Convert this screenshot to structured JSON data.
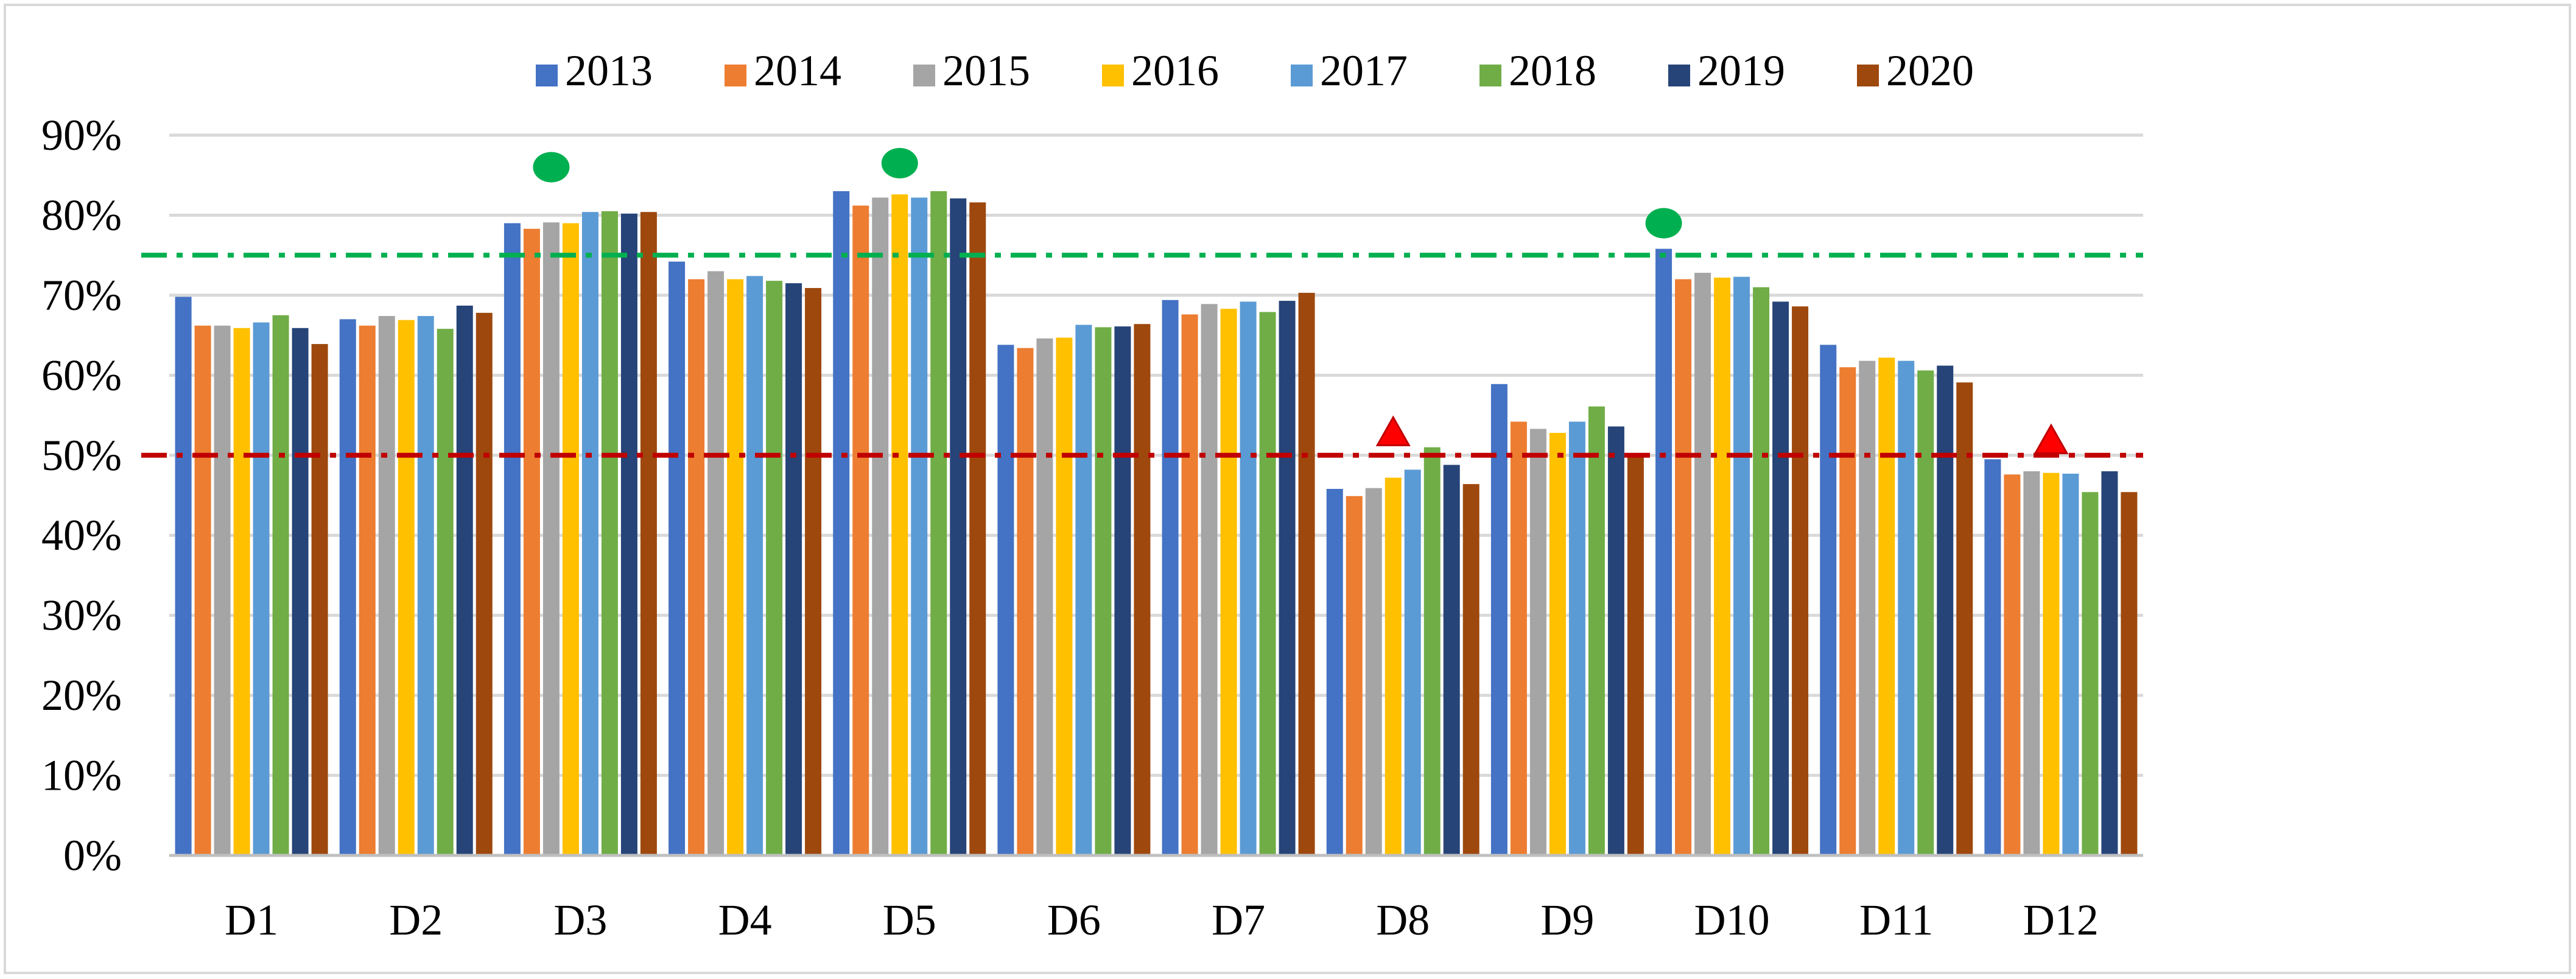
{
  "chart_data": {
    "type": "bar",
    "categories": [
      "D1",
      "D2",
      "D3",
      "D4",
      "D5",
      "D6",
      "D7",
      "D8",
      "D9",
      "D10",
      "D11",
      "D12"
    ],
    "series": [
      {
        "name": "2013",
        "color": "#4472C4",
        "values": [
          69.8,
          67.0,
          79.0,
          74.2,
          83.0,
          63.8,
          69.4,
          45.8,
          58.9,
          75.8,
          63.8,
          49.5
        ]
      },
      {
        "name": "2014",
        "color": "#ED7D31",
        "values": [
          66.2,
          66.2,
          78.3,
          72.0,
          81.2,
          63.4,
          67.6,
          44.9,
          54.2,
          72.0,
          61.0,
          47.6
        ]
      },
      {
        "name": "2015",
        "color": "#A5A5A5",
        "values": [
          66.2,
          67.4,
          79.1,
          73.0,
          82.2,
          64.6,
          68.9,
          45.9,
          53.3,
          72.8,
          61.8,
          48.0
        ]
      },
      {
        "name": "2016",
        "color": "#FFC000",
        "values": [
          65.9,
          66.9,
          79.0,
          72.0,
          82.6,
          64.7,
          68.3,
          47.2,
          52.8,
          72.2,
          62.2,
          47.8
        ]
      },
      {
        "name": "2017",
        "color": "#5B9BD5",
        "values": [
          66.6,
          67.4,
          80.4,
          72.4,
          82.2,
          66.3,
          69.2,
          48.2,
          54.2,
          72.3,
          61.8,
          47.7
        ]
      },
      {
        "name": "2018",
        "color": "#70AD47",
        "values": [
          67.5,
          65.8,
          80.5,
          71.8,
          83.0,
          66.0,
          67.9,
          51.0,
          56.1,
          71.0,
          60.6,
          45.4
        ]
      },
      {
        "name": "2019",
        "color": "#264478",
        "values": [
          65.9,
          68.7,
          80.2,
          71.5,
          82.1,
          66.1,
          69.3,
          48.8,
          53.6,
          69.2,
          61.2,
          48.0
        ]
      },
      {
        "name": "2020",
        "color": "#9E480E",
        "values": [
          63.9,
          67.8,
          80.4,
          70.9,
          81.6,
          66.4,
          70.3,
          46.4,
          49.9,
          68.6,
          59.1,
          45.4
        ]
      }
    ],
    "xlabel": "",
    "ylabel": "",
    "ylim": [
      0,
      90
    ],
    "y_ticks": [
      "0%",
      "10%",
      "20%",
      "30%",
      "40%",
      "50%",
      "60%",
      "70%",
      "80%",
      "90%"
    ],
    "y_tick_values": [
      0,
      10,
      20,
      30,
      40,
      50,
      60,
      70,
      80,
      90
    ],
    "grid": true,
    "legend_position": "top",
    "reference_lines": [
      {
        "value": 75,
        "color": "#00B050",
        "style": "dash-dot"
      },
      {
        "value": 50,
        "color": "#C00000",
        "style": "dash-dot"
      }
    ],
    "markers": [
      {
        "category": "D3",
        "series": "2015",
        "value": 86,
        "shape": "circle",
        "color": "#00B050"
      },
      {
        "category": "D5",
        "series": "2016",
        "value": 86.5,
        "shape": "circle",
        "color": "#00B050"
      },
      {
        "category": "D10",
        "series": "2013",
        "value": 79,
        "shape": "circle",
        "color": "#00B050"
      },
      {
        "category": "D8",
        "series": "2016",
        "value": 53,
        "shape": "triangle",
        "color": "#FF0000"
      },
      {
        "category": "D12",
        "series": "2016",
        "value": 52,
        "shape": "triangle",
        "color": "#FF0000"
      }
    ]
  }
}
